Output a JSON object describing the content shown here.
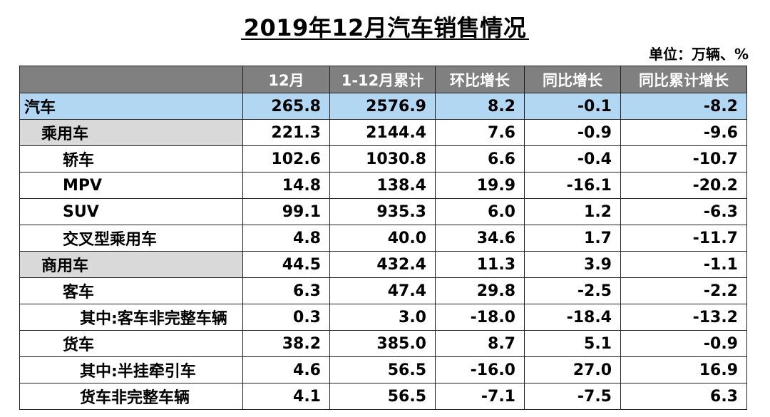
{
  "title": "2019年12月汽车销售情况",
  "unit": "单位：万辆、%",
  "headers": [
    "",
    "12月",
    "1-12月累计",
    "环比增长",
    "同比增长",
    "同比累计增长"
  ],
  "rows": [
    {
      "name": "汽车",
      "values": [
        "265.8",
        "2576.9",
        "8.2",
        "-0.1",
        "-8.2"
      ]
    },
    {
      "name": "乘用车",
      "values": [
        "221.3",
        "2144.4",
        "7.6",
        "-0.9",
        "-9.6"
      ]
    },
    {
      "name": "轿车",
      "values": [
        "102.6",
        "1030.8",
        "6.6",
        "-0.4",
        "-10.7"
      ]
    },
    {
      "name": "MPV",
      "values": [
        "14.8",
        "138.4",
        "19.9",
        "-16.1",
        "-20.2"
      ]
    },
    {
      "name": "SUV",
      "values": [
        "99.1",
        "935.3",
        "6.0",
        "1.2",
        "-6.3"
      ]
    },
    {
      "name": "交叉型乘用车",
      "values": [
        "4.8",
        "40.0",
        "34.6",
        "1.7",
        "-11.7"
      ]
    },
    {
      "name": "商用车",
      "values": [
        "44.5",
        "432.4",
        "11.3",
        "3.9",
        "-1.1"
      ]
    },
    {
      "name": "客车",
      "values": [
        "6.3",
        "47.4",
        "29.8",
        "-2.5",
        "-2.2"
      ]
    },
    {
      "name": "其中:客车非完整车辆",
      "values": [
        "0.3",
        "3.0",
        "-18.0",
        "-18.4",
        "-13.2"
      ]
    },
    {
      "name": "货车",
      "values": [
        "38.2",
        "385.0",
        "8.7",
        "5.1",
        "-0.9"
      ]
    },
    {
      "name": "其中:半挂牵引车",
      "values": [
        "4.6",
        "56.5",
        "-16.0",
        "27.0",
        "16.9"
      ]
    },
    {
      "name": "货车非完整车辆",
      "values": [
        "4.1",
        "56.5",
        "-7.1",
        "-7.5",
        "6.3"
      ]
    }
  ]
}
